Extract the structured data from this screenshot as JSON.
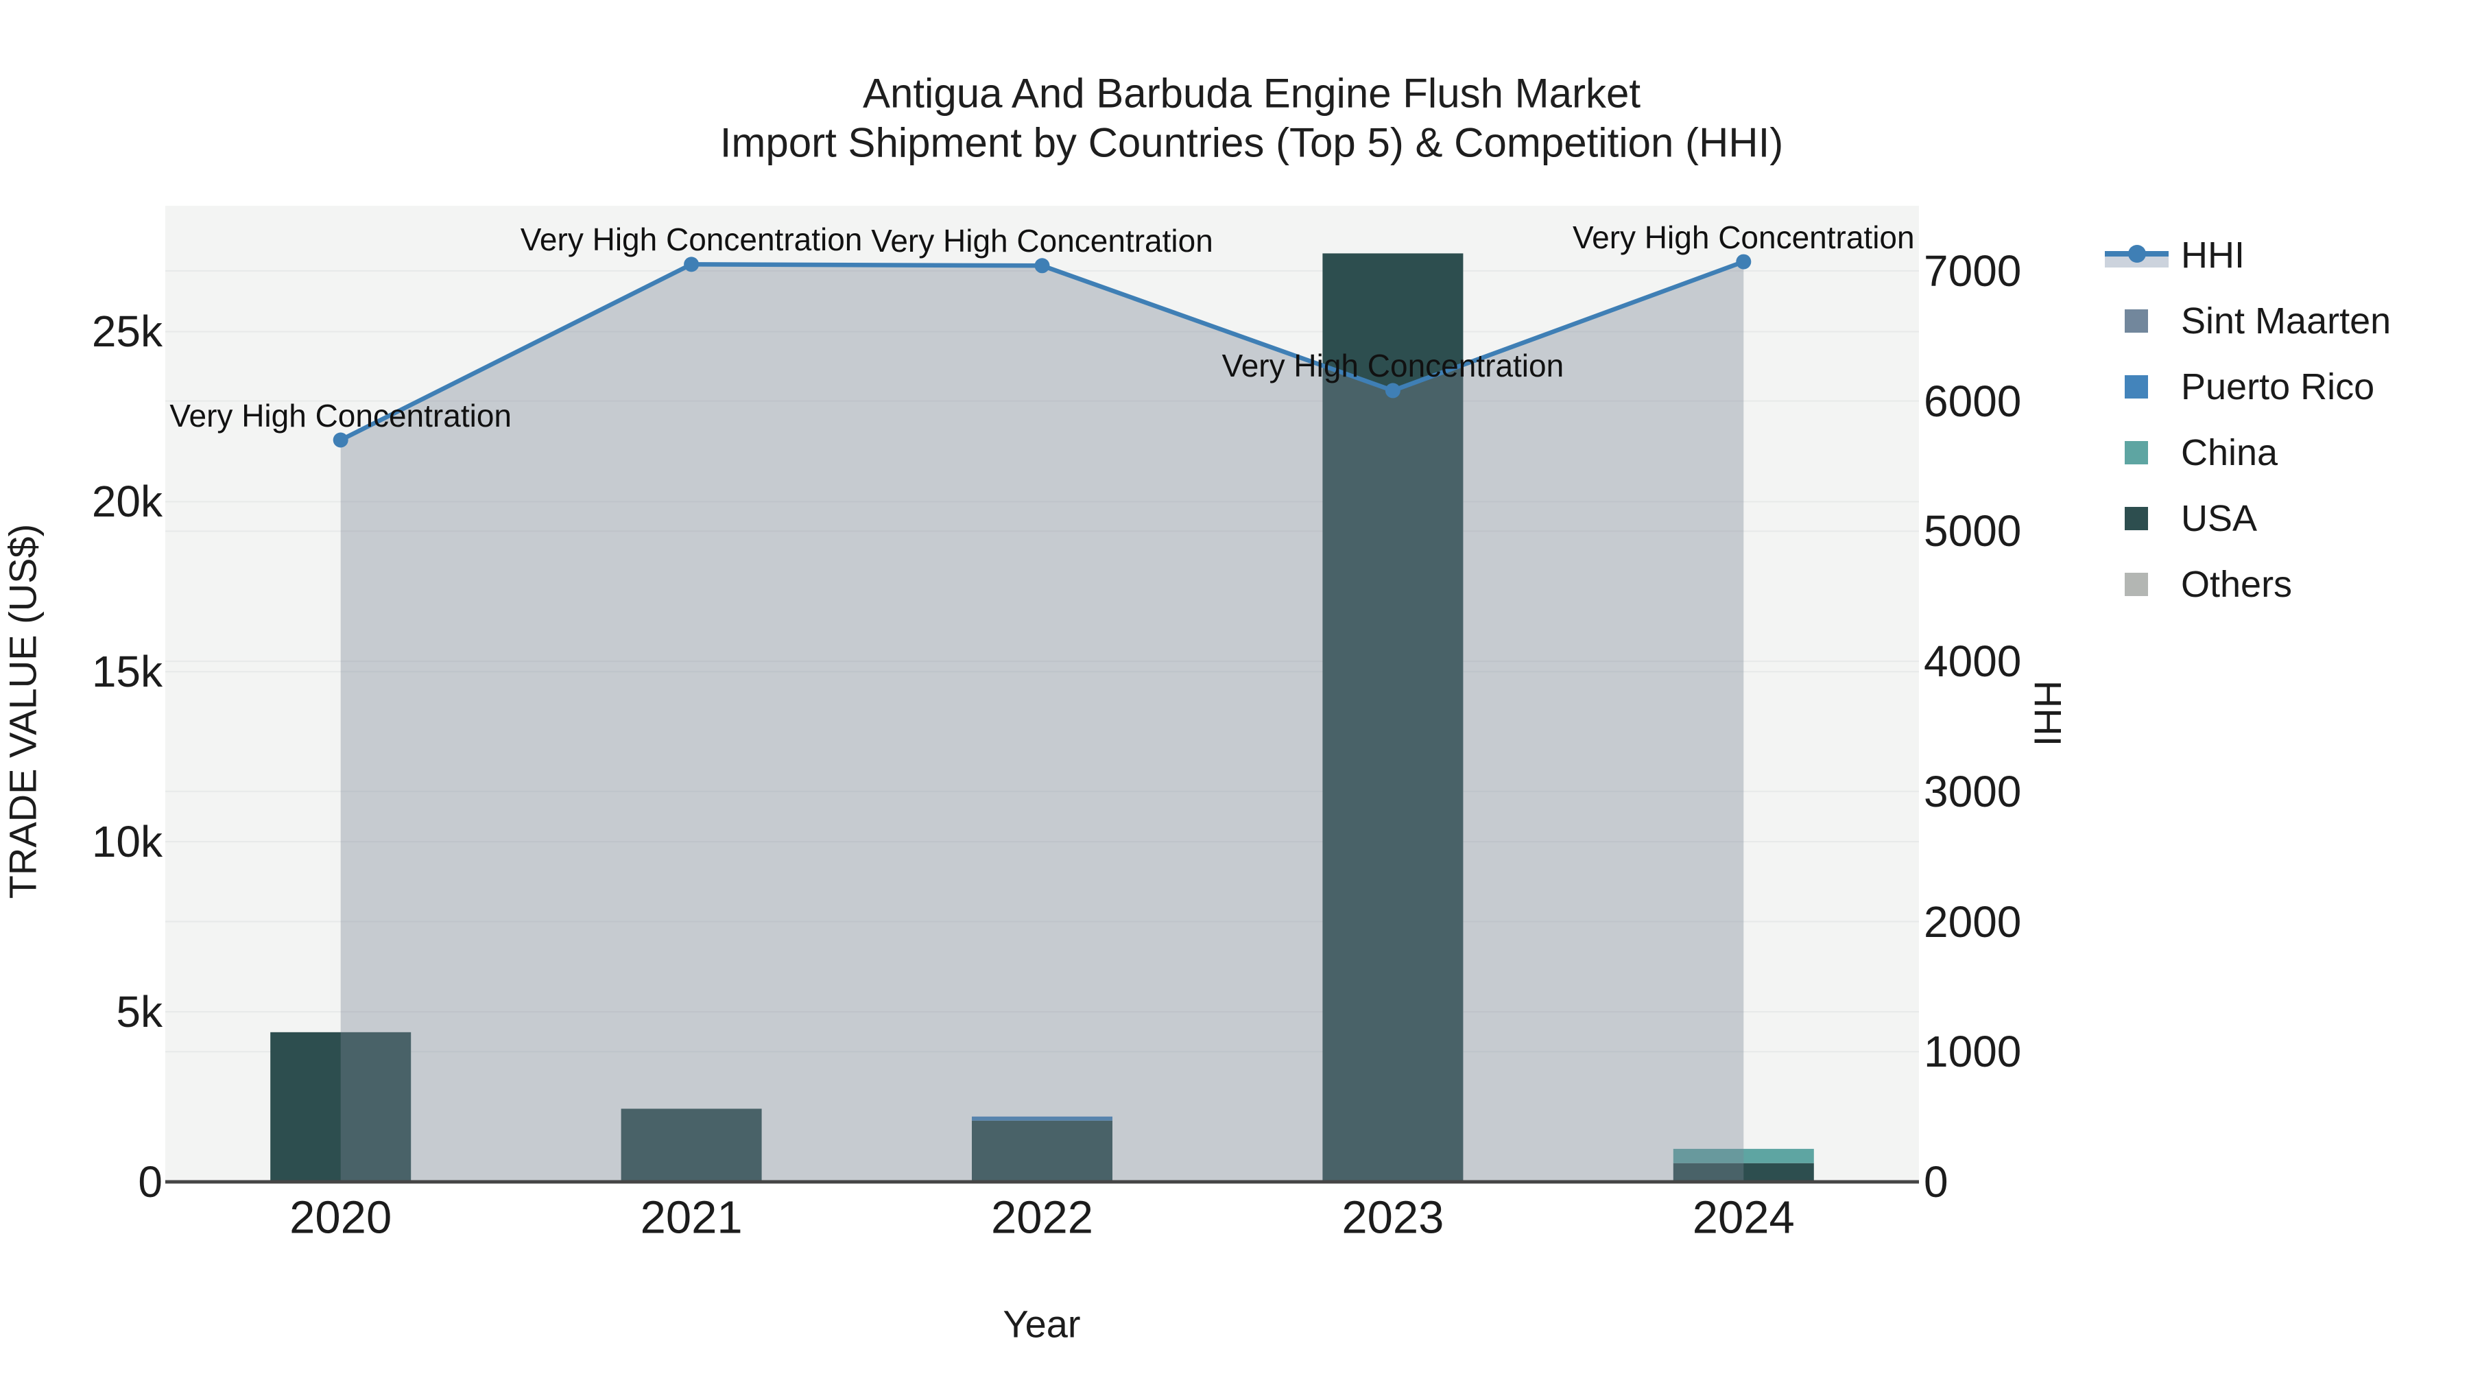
{
  "title": {
    "line1": "Antigua And Barbuda Engine Flush Market",
    "line2": "Import Shipment by Countries (Top 5) & Competition (HHI)"
  },
  "colors": {
    "plot_bg": "#f3f4f3",
    "gridline": "#e7e9e9",
    "axis_line": "#454545",
    "area_fill": "rgba(122,133,148,0.37)",
    "hhi_line": "#3f7fb5",
    "legend_band": "#ccd3dd",
    "text": "#1a1a1a"
  },
  "chart_data": {
    "type": "bar",
    "subtype": "stacked-bars-with-line",
    "x": [
      "2020",
      "2021",
      "2022",
      "2023",
      "2024"
    ],
    "x_axis": {
      "label": "Year"
    },
    "left_axis": {
      "label": "TRADE VALUE (US$)",
      "ticks": [
        "0",
        "5k",
        "10k",
        "15k",
        "20k",
        "25k"
      ],
      "tick_values": [
        0,
        5000,
        10000,
        15000,
        20000,
        25000
      ],
      "max": 28700
    },
    "right_axis": {
      "label": "HHI",
      "ticks": [
        "0",
        "1000",
        "2000",
        "3000",
        "4000",
        "5000",
        "6000",
        "7000"
      ],
      "tick_values": [
        0,
        1000,
        2000,
        3000,
        4000,
        5000,
        6000,
        7000
      ],
      "max": 7500
    },
    "stack_order": [
      "USA",
      "China",
      "Puerto Rico",
      "Sint Maarten",
      "Others"
    ],
    "bar_series": [
      {
        "name": "Sint Maarten",
        "color": "#72879c",
        "values": [
          0,
          0,
          0,
          0,
          0
        ]
      },
      {
        "name": "Puerto Rico",
        "color": "#4384bb",
        "values": [
          0,
          0,
          120,
          0,
          0
        ]
      },
      {
        "name": "China",
        "color": "#5ea5a2",
        "values": [
          0,
          0,
          0,
          0,
          420
        ]
      },
      {
        "name": "USA",
        "color": "#2d4e4f",
        "values": [
          4400,
          2150,
          1800,
          27300,
          550
        ]
      },
      {
        "name": "Others",
        "color": "#b3b6b3",
        "values": [
          0,
          0,
          0,
          0,
          0
        ]
      }
    ],
    "line_series": {
      "name": "HHI",
      "color": "#3f7fb5",
      "values": [
        5700,
        7050,
        7040,
        6080,
        7070
      ]
    },
    "annotations": [
      "Very High Concentration",
      "Very High Concentration",
      "Very High Concentration",
      "Very High Concentration",
      "Very High Concentration"
    ],
    "legend_position": "right"
  },
  "legend": {
    "items": [
      {
        "label": "HHI",
        "type": "line",
        "color": "#3f7fb5"
      },
      {
        "label": "Sint Maarten",
        "type": "square",
        "color": "#72879c"
      },
      {
        "label": "Puerto Rico",
        "type": "square",
        "color": "#4384bb"
      },
      {
        "label": "China",
        "type": "square",
        "color": "#5ea5a2"
      },
      {
        "label": "USA",
        "type": "square",
        "color": "#2d4e4f"
      },
      {
        "label": "Others",
        "type": "square",
        "color": "#b3b6b3"
      }
    ]
  }
}
